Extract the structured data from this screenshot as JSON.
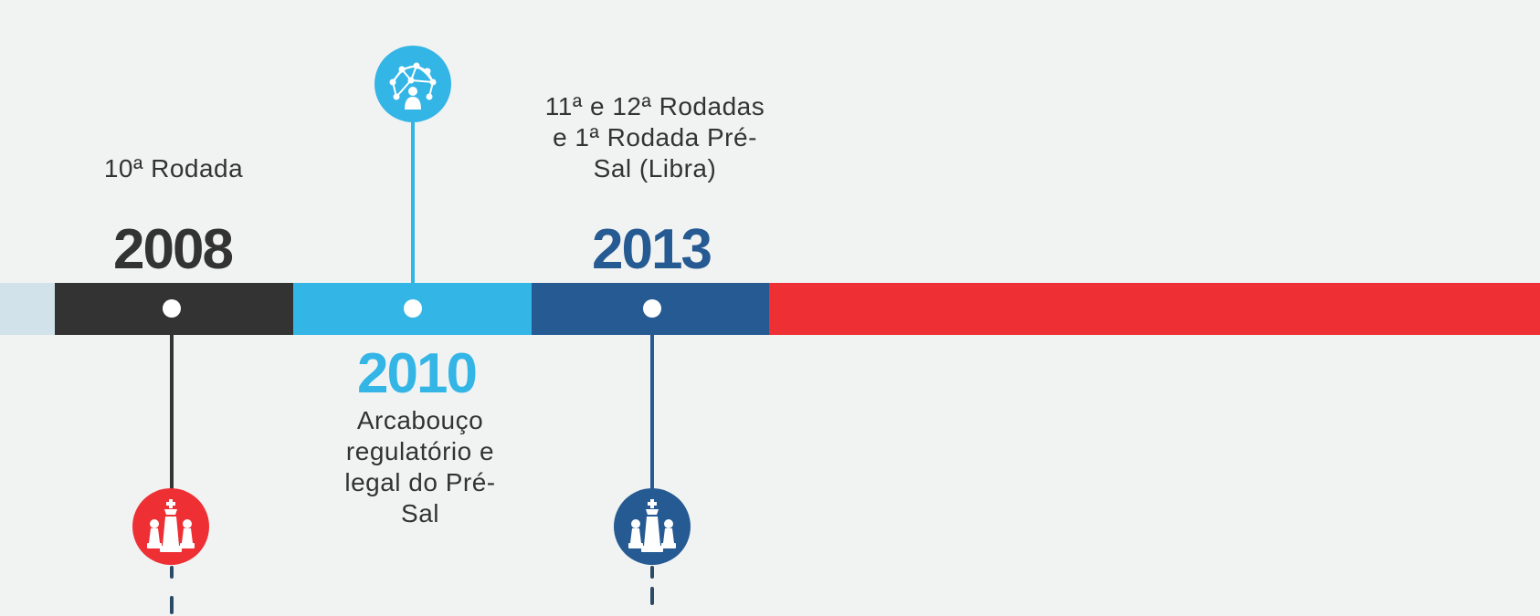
{
  "colors": {
    "background": "#f1f3f2",
    "band_pale": "#d1e2ea",
    "band_2008": "#333333",
    "band_2010": "#33b5e6",
    "band_2013": "#255a92",
    "band_future": "#ee3035",
    "icon_red": "#ee3035",
    "dash_color": "#2a4a66"
  },
  "timeline": {
    "events": [
      {
        "year": "2008",
        "label": "10ª Rodada",
        "icon": "chess-pieces-icon"
      },
      {
        "year": "2010",
        "label_lines": [
          "Arcabouço",
          "regulatório e",
          "legal do Pré-",
          "Sal"
        ],
        "icon": "network-person-icon"
      },
      {
        "year": "2013",
        "label_lines": [
          "11ª e 12ª Rodadas",
          "e 1ª Rodada Pré-",
          "Sal (Libra)"
        ],
        "icon": "chess-pieces-icon"
      }
    ]
  }
}
